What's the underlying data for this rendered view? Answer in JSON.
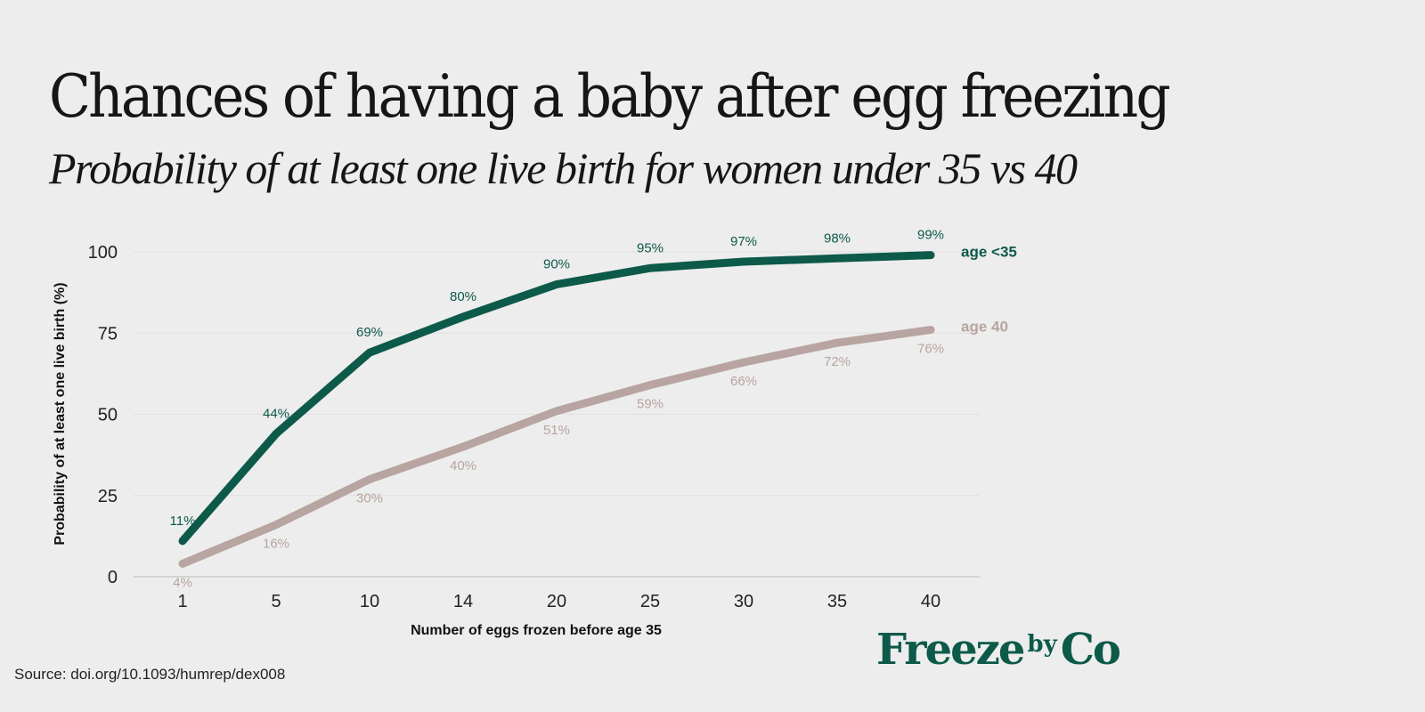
{
  "header": {
    "title": "Chances of having a baby  after egg freezing",
    "subtitle": "Probability of at least one live birth  for women under 35 vs 40"
  },
  "chart_data": {
    "type": "line",
    "title": "Chances of having a baby after egg freezing",
    "subtitle": "Probability of at least one live birth for women under 35 vs 40",
    "xlabel": "Number of eggs frozen before age 35",
    "ylabel": "Probability of at least one live birth (%)",
    "categories": [
      "1",
      "5",
      "10",
      "14",
      "20",
      "25",
      "30",
      "35",
      "40"
    ],
    "yticks": [
      "0",
      "25",
      "50",
      "75",
      "100"
    ],
    "ylim": [
      0,
      100
    ],
    "grid": "horizontal",
    "series": [
      {
        "name": "age <35",
        "color": "#0d5a4a",
        "values": [
          11,
          44,
          69,
          80,
          90,
          95,
          97,
          98,
          99
        ],
        "labels": [
          "11%",
          "44%",
          "69%",
          "80%",
          "90%",
          "95%",
          "97%",
          "98%",
          "99%"
        ]
      },
      {
        "name": "age 40",
        "color": "#b8a4a0",
        "values": [
          4,
          16,
          30,
          40,
          51,
          59,
          66,
          72,
          76
        ],
        "labels": [
          "4%",
          "16%",
          "30%",
          "40%",
          "51%",
          "59%",
          "66%",
          "72%",
          "76%"
        ]
      }
    ]
  },
  "footer": {
    "source": "Source: doi.org/10.1093/humrep/dex008",
    "logo_main": "Freeze",
    "logo_by": "by",
    "logo_end": "Co"
  }
}
